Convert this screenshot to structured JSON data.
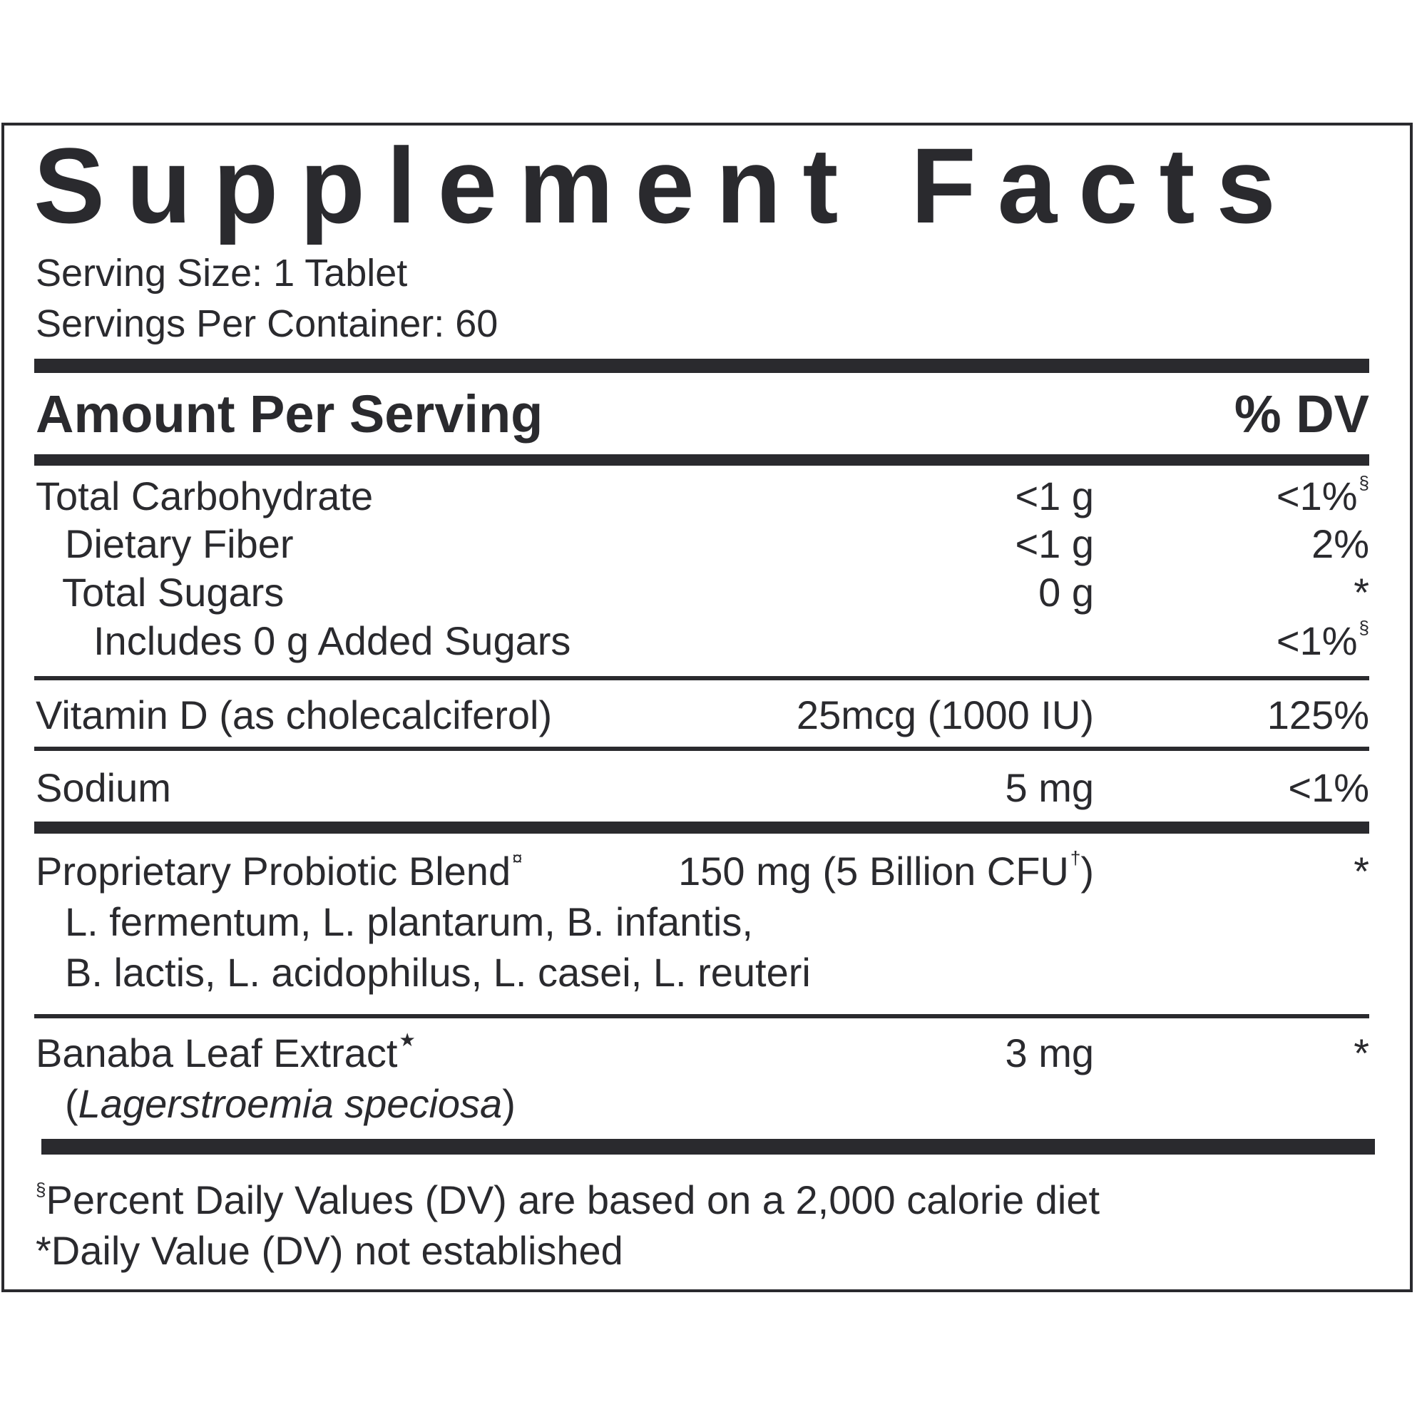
{
  "title": "Supplement Facts",
  "serving_size": "Serving Size: 1 Tablet",
  "servings_per_container": "Servings Per Container: 60",
  "header": {
    "amount": "Amount Per Serving",
    "dv": "% DV"
  },
  "rows": {
    "total_carb": {
      "name": "Total Carbohydrate",
      "amount": "<1 g",
      "dv": "<1%",
      "dv_mark": "§"
    },
    "fiber": {
      "name": "Dietary Fiber",
      "amount": "<1 g",
      "dv": "2%"
    },
    "sugars": {
      "name": "Total Sugars",
      "amount": "0 g",
      "dv": "*"
    },
    "added_sugars": {
      "name": "Includes 0 g Added Sugars",
      "dv": "<1%",
      "dv_mark": "§"
    },
    "vitamin_d": {
      "name": "Vitamin D (as cholecalciferol)",
      "amount": "25mcg (1000 IU)",
      "dv": "125%"
    },
    "sodium": {
      "name": "Sodium",
      "amount": "5 mg",
      "dv": "<1%"
    },
    "probiotic": {
      "name": "Proprietary Probiotic Blend",
      "name_mark": "¤",
      "amount": "150 mg (5 Billion CFU",
      "amount_mark": "†",
      "amount_close": ")",
      "dv": "*",
      "strains_line1": "L. fermentum, L. plantarum, B. infantis,",
      "strains_line2": "B. lactis, L. acidophilus, L. casei, L. reuteri"
    },
    "banaba": {
      "name": "Banaba Leaf Extract",
      "name_mark": "★",
      "amount": "3 mg",
      "dv": "*",
      "latin_open": "(",
      "latin": "Lagerstroemia speciosa",
      "latin_close": ")"
    }
  },
  "footnotes": {
    "dv_mark": "§",
    "dv_basis": "Percent Daily Values (DV) are based on a 2,000 calorie diet",
    "not_established": "*Daily Value (DV) not established"
  }
}
